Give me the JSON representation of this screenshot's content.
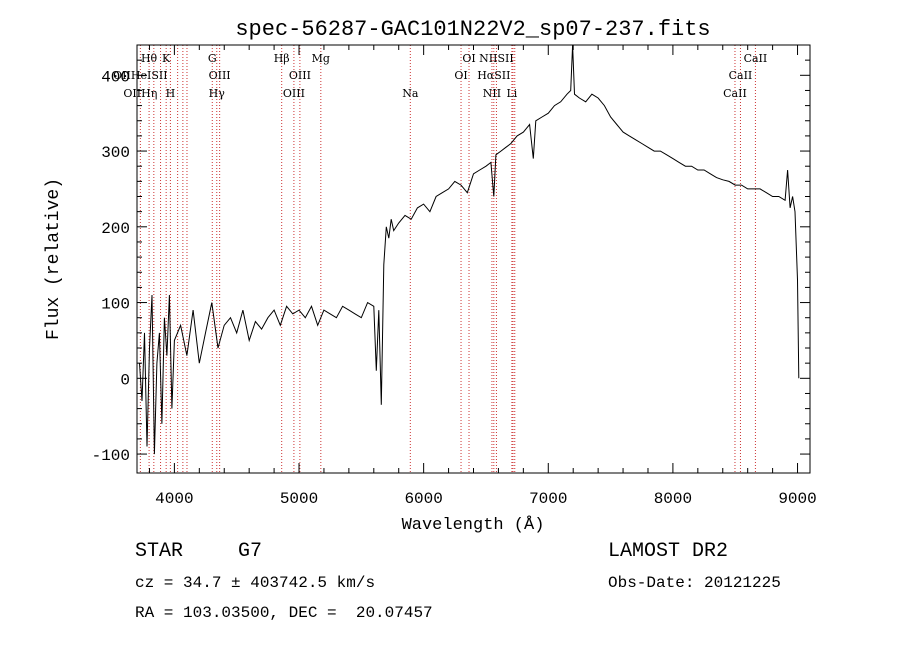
{
  "chart_data": {
    "type": "line",
    "title": "spec-56287-GAC101N22V2_sp07-237.fits",
    "xlabel": "Wavelength (Å)",
    "ylabel": "Flux (relative)",
    "xlim": [
      3700,
      9100
    ],
    "ylim": [
      -125,
      440
    ],
    "x_ticks": [
      4000,
      5000,
      6000,
      7000,
      8000,
      9000
    ],
    "y_ticks": [
      -100,
      0,
      100,
      200,
      300,
      400
    ],
    "grid": false,
    "series_color": "#000000",
    "line_marker_color": "#cc3333",
    "series": [
      {
        "x": [
          3720,
          3740,
          3760,
          3780,
          3800,
          3820,
          3840,
          3860,
          3880,
          3900,
          3920,
          3940,
          3960,
          3980,
          4000,
          4050,
          4100,
          4150,
          4200,
          4250,
          4300,
          4350,
          4400,
          4450,
          4500,
          4550,
          4600,
          4650,
          4700,
          4750,
          4800,
          4850,
          4900,
          4950,
          5000,
          5050,
          5100,
          5150,
          5200,
          5250,
          5300,
          5350,
          5400,
          5450,
          5500,
          5550,
          5600,
          5620,
          5640,
          5660,
          5680,
          5700,
          5720,
          5740,
          5760,
          5800,
          5850,
          5900,
          5950,
          6000,
          6050,
          6100,
          6150,
          6200,
          6250,
          6300,
          6350,
          6400,
          6450,
          6500,
          6540,
          6563,
          6580,
          6620,
          6660,
          6700,
          6750,
          6800,
          6850,
          6880,
          6900,
          6950,
          7000,
          7050,
          7100,
          7150,
          7180,
          7195,
          7210,
          7250,
          7300,
          7350,
          7400,
          7450,
          7500,
          7550,
          7600,
          7650,
          7700,
          7750,
          7800,
          7850,
          7900,
          7950,
          8000,
          8050,
          8100,
          8150,
          8200,
          8250,
          8300,
          8350,
          8400,
          8450,
          8500,
          8550,
          8600,
          8650,
          8700,
          8750,
          8800,
          8850,
          8900,
          8920,
          8940,
          8960,
          8980,
          9000,
          9010
        ],
        "y": [
          20,
          -30,
          60,
          -90,
          40,
          110,
          -100,
          20,
          60,
          -60,
          80,
          30,
          110,
          -40,
          50,
          70,
          30,
          90,
          20,
          60,
          100,
          40,
          70,
          80,
          60,
          90,
          50,
          75,
          65,
          80,
          90,
          70,
          95,
          85,
          90,
          80,
          95,
          70,
          90,
          85,
          80,
          95,
          90,
          85,
          80,
          100,
          95,
          10,
          90,
          -35,
          150,
          200,
          185,
          210,
          195,
          205,
          215,
          210,
          225,
          230,
          220,
          240,
          245,
          250,
          260,
          255,
          245,
          270,
          275,
          280,
          285,
          240,
          295,
          300,
          305,
          310,
          320,
          325,
          335,
          290,
          340,
          345,
          350,
          360,
          365,
          375,
          380,
          440,
          375,
          370,
          365,
          375,
          370,
          360,
          345,
          335,
          325,
          320,
          315,
          310,
          305,
          300,
          300,
          295,
          290,
          285,
          280,
          280,
          275,
          275,
          270,
          265,
          262,
          260,
          255,
          255,
          250,
          250,
          250,
          245,
          240,
          240,
          235,
          275,
          225,
          240,
          220,
          130,
          0
        ]
      }
    ],
    "line_groups": [
      {
        "row": "top",
        "labels": [
          {
            "text": "Hθ",
            "wl": 3797
          },
          {
            "text": "K",
            "wl": 3934
          },
          {
            "text": "G",
            "wl": 4304
          },
          {
            "text": "Hβ",
            "wl": 4861
          },
          {
            "text": "Mg",
            "wl": 5175
          },
          {
            "text": "OI",
            "wl": 6364
          },
          {
            "text": "NIISII",
            "wl": 6584
          },
          {
            "text": "CaII",
            "wl": 8662
          }
        ]
      },
      {
        "row": "middle",
        "labels": [
          {
            "text": "OIIHeISII",
            "wl": 3727
          },
          {
            "text": "OIII",
            "wl": 4363
          },
          {
            "text": "OIII",
            "wl": 5007
          },
          {
            "text": "OI",
            "wl": 6300
          },
          {
            "text": "HαSII",
            "wl": 6563
          },
          {
            "text": "CaII",
            "wl": 8542
          }
        ]
      },
      {
        "row": "bottom",
        "labels": [
          {
            "text": "OIIHη",
            "wl": 3727
          },
          {
            "text": "H",
            "wl": 3968
          },
          {
            "text": "Hγ",
            "wl": 4340
          },
          {
            "text": "OIII",
            "wl": 4959
          },
          {
            "text": "Na",
            "wl": 5893
          },
          {
            "text": "NII",
            "wl": 6548
          },
          {
            "text": "Li",
            "wl": 6708
          },
          {
            "text": "CaII",
            "wl": 8498
          }
        ]
      }
    ],
    "marker_wavelengths": [
      3727,
      3797,
      3835,
      3889,
      3934,
      3968,
      4026,
      4068,
      4101,
      4304,
      4340,
      4363,
      4861,
      4959,
      5007,
      5175,
      5893,
      6300,
      6364,
      6548,
      6563,
      6584,
      6708,
      6717,
      6731,
      8498,
      8542,
      8662
    ]
  },
  "info": {
    "class_label": "STAR",
    "subclass_label": "G7",
    "redshift_text": "cz = 34.7 ± 403742.5 km/s",
    "position_text": "RA = 103.03500, DEC =  20.07457",
    "survey_label": "LAMOST DR2",
    "obs_date_text": "Obs-Date: 20121225"
  }
}
